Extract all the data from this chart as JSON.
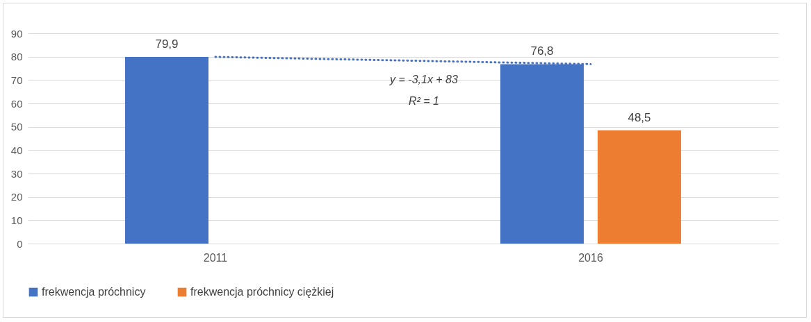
{
  "chart_data": {
    "type": "bar",
    "categories": [
      "2011",
      "2016"
    ],
    "series": [
      {
        "name": "frekwencja  próchnicy",
        "color": "#4472c4",
        "values": [
          79.9,
          76.8
        ],
        "value_labels": [
          "79,9",
          "76,8"
        ]
      },
      {
        "name": "frekwencja próchnicy ciężkiej",
        "color": "#ed7d31",
        "values": [
          null,
          48.5
        ],
        "value_labels": [
          null,
          "48,5"
        ]
      },
      {
        "type": "line",
        "color": "#4472c4",
        "values": [
          79.9,
          76.8
        ],
        "line_style": "dotted"
      }
    ],
    "annotations": [
      "y = -3,1x + 83",
      "R² = 1"
    ],
    "ylim": [
      0,
      90
    ],
    "yticks": [
      0,
      10,
      20,
      30,
      40,
      50,
      60,
      70,
      80,
      90
    ],
    "grid": "y",
    "legend": "bottom"
  }
}
